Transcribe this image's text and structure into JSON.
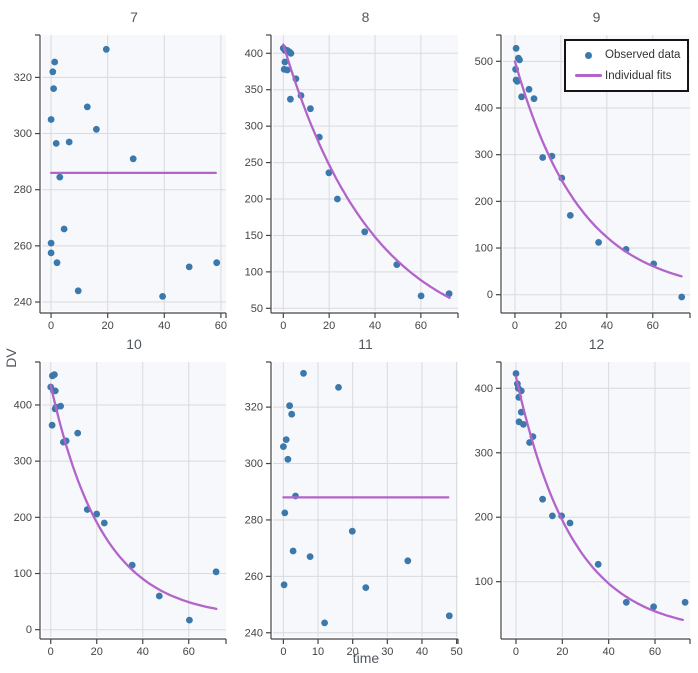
{
  "chart_data": {
    "type": "scatter",
    "x_label": "time",
    "y_label": "DV",
    "facet_layout": {
      "rows": 2,
      "cols": 3
    },
    "colors": {
      "observed": "#3b78ab",
      "fit": "#b264cb",
      "plot_bg": "#f7f8fb",
      "grid": "#d8dade",
      "axis": "#444444",
      "tick_text": "#444444",
      "title_text": "#53585e"
    },
    "legend": {
      "position": "top-right",
      "items": [
        {
          "label": "Observed data",
          "marker": "dot"
        },
        {
          "label": "Individual fits",
          "marker": "line"
        }
      ]
    },
    "panels": [
      {
        "title": "7",
        "x_ticks": [
          0,
          20,
          40,
          60
        ],
        "y_ticks": [
          240,
          260,
          280,
          300,
          320
        ],
        "x_range": [
          -3.2,
          61.8
        ],
        "y_range": [
          236.8,
          335.1
        ],
        "observed": [
          [
            0,
            305
          ],
          [
            0,
            261
          ],
          [
            0,
            257.5
          ],
          [
            0.6,
            322
          ],
          [
            0.9,
            316
          ],
          [
            1.3,
            325.5
          ],
          [
            1.8,
            296.5
          ],
          [
            2.1,
            254
          ],
          [
            3.1,
            284.5
          ],
          [
            4.6,
            266
          ],
          [
            6.4,
            297
          ],
          [
            9.6,
            244
          ],
          [
            12.8,
            309.5
          ],
          [
            16,
            301.5
          ],
          [
            19.5,
            330
          ],
          [
            29,
            291
          ],
          [
            39.4,
            242
          ],
          [
            48.8,
            252.5
          ],
          [
            58.5,
            254
          ]
        ],
        "fit": {
          "type": "constant",
          "value": 286,
          "x_start": 0,
          "x_end": 58.2
        }
      },
      {
        "title": "8",
        "x_ticks": [
          0,
          20,
          40,
          60
        ],
        "y_ticks": [
          50,
          100,
          150,
          200,
          250,
          300,
          350,
          400
        ],
        "x_range": [
          -4.5,
          76.2
        ],
        "y_range": [
          46.3,
          425.1
        ],
        "observed": [
          [
            0,
            407
          ],
          [
            0.4,
            378
          ],
          [
            0.7,
            404
          ],
          [
            0.7,
            388
          ],
          [
            1.7,
            404
          ],
          [
            1.7,
            377
          ],
          [
            2.6,
            402
          ],
          [
            3.3,
            400
          ],
          [
            3.1,
            337
          ],
          [
            5.5,
            365
          ],
          [
            7.7,
            342
          ],
          [
            11.8,
            324
          ],
          [
            15.7,
            285
          ],
          [
            19.9,
            236
          ],
          [
            23.6,
            200
          ],
          [
            35.5,
            155
          ],
          [
            49.5,
            110
          ],
          [
            60.1,
            67
          ],
          [
            72.3,
            70
          ]
        ],
        "fit": {
          "type": "exp",
          "A": 412,
          "C": 0,
          "k": 0.0256,
          "x_start": 0,
          "x_end": 72.5
        }
      },
      {
        "title": "9",
        "x_ticks": [
          0,
          20,
          40,
          60
        ],
        "y_ticks": [
          0,
          100,
          200,
          300,
          400,
          500
        ],
        "x_range": [
          -5.2,
          76.2
        ],
        "y_range": [
          -34.9,
          556.4
        ],
        "observed": [
          [
            0.3,
            483
          ],
          [
            0.5,
            528
          ],
          [
            0.5,
            460
          ],
          [
            1,
            457
          ],
          [
            1.5,
            507
          ],
          [
            2,
            503
          ],
          [
            2.9,
            424
          ],
          [
            6.1,
            440
          ],
          [
            8.3,
            420
          ],
          [
            12.1,
            294
          ],
          [
            16.1,
            297
          ],
          [
            20.4,
            250
          ],
          [
            24.1,
            170
          ],
          [
            36.4,
            112
          ],
          [
            48.4,
            97
          ],
          [
            60.4,
            66
          ],
          [
            72.6,
            -5
          ]
        ],
        "fit": {
          "type": "exp",
          "A": 500,
          "C": 0,
          "k": 0.035,
          "x_start": 0,
          "x_end": 72.5
        }
      },
      {
        "title": "10",
        "x_ticks": [
          0,
          20,
          40,
          60
        ],
        "y_ticks": [
          0,
          100,
          200,
          300,
          400
        ],
        "x_range": [
          -3.8,
          76.2
        ],
        "y_range": [
          -13,
          476.5
        ],
        "observed": [
          [
            0,
            432
          ],
          [
            0.6,
            364
          ],
          [
            0.7,
            452
          ],
          [
            1.2,
            425
          ],
          [
            1.6,
            454
          ],
          [
            1.9,
            393
          ],
          [
            2,
            425
          ],
          [
            2.3,
            396
          ],
          [
            4.3,
            398
          ],
          [
            5.5,
            334
          ],
          [
            6.7,
            336
          ],
          [
            11.7,
            350
          ],
          [
            15.9,
            214
          ],
          [
            20,
            206
          ],
          [
            23.3,
            190
          ],
          [
            35.4,
            115
          ],
          [
            47.2,
            60
          ],
          [
            60.3,
            17
          ],
          [
            71.9,
            103
          ]
        ],
        "fit": {
          "type": "exp",
          "A": 415,
          "C": 20,
          "k": 0.0443,
          "x_start": 0,
          "x_end": 72
        }
      },
      {
        "title": "11",
        "x_ticks": [
          0,
          10,
          20,
          30,
          40,
          50
        ],
        "y_ticks": [
          240,
          260,
          280,
          300,
          320
        ],
        "x_range": [
          -3,
          50.4
        ],
        "y_range": [
          238.5,
          336
        ],
        "observed": [
          [
            0,
            306
          ],
          [
            0.2,
            257
          ],
          [
            0.4,
            282.5
          ],
          [
            0.8,
            308.5
          ],
          [
            1.3,
            301.5
          ],
          [
            1.8,
            320.5
          ],
          [
            2.4,
            317.5
          ],
          [
            2.8,
            269
          ],
          [
            3.5,
            288.5
          ],
          [
            5.8,
            332
          ],
          [
            7.7,
            267
          ],
          [
            11.9,
            243.5
          ],
          [
            15.9,
            327
          ],
          [
            19.9,
            276
          ],
          [
            23.8,
            256
          ],
          [
            35.9,
            265.5
          ],
          [
            47.9,
            246
          ]
        ],
        "fit": {
          "type": "constant",
          "value": 288,
          "x_start": 0,
          "x_end": 47.6
        }
      },
      {
        "title": "12",
        "x_ticks": [
          0,
          20,
          40,
          60
        ],
        "y_ticks": [
          100,
          200,
          300,
          400
        ],
        "x_range": [
          -5.6,
          75.1
        ],
        "y_range": [
          14.2,
          440.8
        ],
        "observed": [
          [
            0,
            423
          ],
          [
            0.6,
            407
          ],
          [
            1,
            400
          ],
          [
            1.2,
            386
          ],
          [
            1.3,
            348
          ],
          [
            2.3,
            396
          ],
          [
            2.3,
            363
          ],
          [
            3.2,
            344
          ],
          [
            5.9,
            316
          ],
          [
            7.3,
            325
          ],
          [
            11.5,
            228
          ],
          [
            15.7,
            202
          ],
          [
            19.7,
            202
          ],
          [
            23.3,
            191
          ],
          [
            35.5,
            127
          ],
          [
            47.6,
            68
          ],
          [
            59.4,
            61
          ],
          [
            73,
            68
          ]
        ],
        "fit": {
          "type": "exp",
          "A": 398,
          "C": 20,
          "k": 0.041,
          "x_start": 0,
          "x_end": 72
        }
      }
    ]
  }
}
